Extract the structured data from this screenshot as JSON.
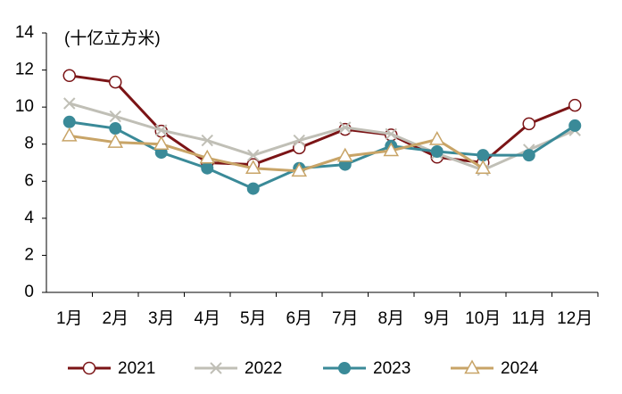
{
  "chart_data": {
    "type": "line",
    "subtitle": "(十亿立方米)",
    "categories": [
      "1月",
      "2月",
      "3月",
      "4月",
      "5月",
      "6月",
      "7月",
      "8月",
      "9月",
      "10月",
      "11月",
      "12月"
    ],
    "series": [
      {
        "name": "2021",
        "color": "#7b1416",
        "marker": "open-circle",
        "values": [
          11.7,
          11.35,
          8.7,
          7.0,
          6.9,
          7.8,
          8.8,
          8.5,
          7.3,
          7.0,
          9.1,
          10.1
        ]
      },
      {
        "name": "2022",
        "color": "#c0bfb6",
        "marker": "x",
        "values": [
          10.2,
          9.5,
          8.75,
          8.2,
          7.4,
          8.2,
          8.9,
          8.55,
          7.5,
          6.6,
          7.7,
          8.75
        ]
      },
      {
        "name": "2023",
        "color": "#3a8a98",
        "marker": "filled-circle",
        "values": [
          9.2,
          8.85,
          7.55,
          6.7,
          5.6,
          6.7,
          6.9,
          7.9,
          7.6,
          7.4,
          7.4,
          9.0
        ]
      },
      {
        "name": "2024",
        "color": "#c8a467",
        "marker": "open-triangle",
        "values": [
          8.45,
          8.1,
          8.0,
          7.25,
          6.7,
          6.55,
          7.35,
          7.65,
          8.25,
          6.7,
          null,
          null
        ]
      }
    ],
    "ylim": [
      0,
      14
    ],
    "yticks": [
      0,
      2,
      4,
      6,
      8,
      10,
      12,
      14
    ],
    "grid": false,
    "legend": "bottom"
  }
}
